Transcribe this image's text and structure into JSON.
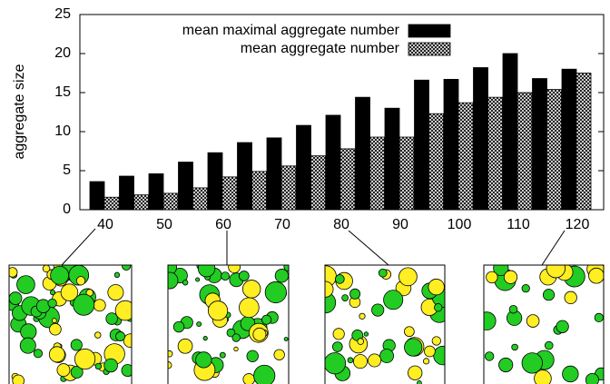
{
  "chart_data": {
    "type": "bar",
    "y_label": "aggregate size",
    "categories": [
      40,
      null,
      50,
      null,
      60,
      null,
      70,
      null,
      80,
      null,
      90,
      null,
      100,
      null,
      110,
      null,
      120
    ],
    "series": [
      {
        "name": "mean maximal aggregate number",
        "color": "#000000",
        "fill": "solid",
        "values": [
          3.6,
          4.3,
          4.6,
          6.1,
          7.3,
          8.6,
          9.2,
          10.8,
          12.1,
          14.4,
          13.0,
          16.6,
          16.7,
          18.2,
          20.0,
          16.8,
          18.0
        ]
      },
      {
        "name": "mean aggregate number",
        "color": "#000000",
        "fill": "crosshatch",
        "values": [
          1.6,
          1.9,
          2.1,
          2.8,
          4.2,
          4.9,
          5.6,
          6.9,
          7.8,
          9.3,
          9.3,
          12.3,
          13.7,
          14.4,
          15.0,
          15.4,
          17.5
        ]
      }
    ],
    "ylim": [
      0,
      25
    ],
    "yticks": [
      0,
      5,
      10,
      15,
      20,
      25
    ],
    "legend": "top-right"
  }
}
